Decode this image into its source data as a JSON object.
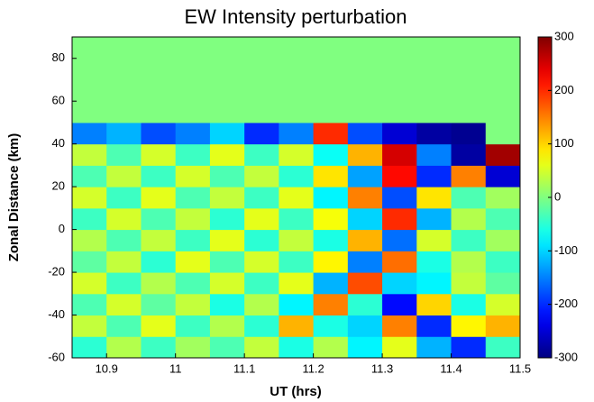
{
  "chart_data": {
    "type": "heatmap",
    "title": "EW Intensity perturbation",
    "x_label": "UT (hrs)",
    "y_label": "Zonal Distance (km)",
    "colormap": "jet",
    "x_edges": [
      10.85,
      10.9,
      10.95,
      11.0,
      11.05,
      11.1,
      11.15,
      11.2,
      11.25,
      11.3,
      11.35,
      11.4,
      11.45,
      11.5
    ],
    "y_edges": [
      -60,
      -50,
      -40,
      -30,
      -20,
      -10,
      0,
      10,
      20,
      30,
      40,
      50,
      60,
      70,
      80,
      90
    ],
    "z": [
      [
        -50,
        30,
        -40,
        20,
        -30,
        40,
        -60,
        30,
        -80,
        60,
        -120,
        -200,
        -40
      ],
      [
        40,
        -30,
        60,
        -40,
        30,
        -50,
        120,
        -60,
        -100,
        150,
        -200,
        80,
        120
      ],
      [
        -30,
        50,
        -20,
        40,
        -60,
        30,
        -80,
        150,
        -50,
        -220,
        100,
        -60,
        50
      ],
      [
        50,
        -40,
        30,
        -30,
        50,
        -40,
        60,
        -120,
        180,
        -100,
        -80,
        40,
        -20
      ],
      [
        -20,
        40,
        -50,
        60,
        -30,
        50,
        -40,
        80,
        -150,
        160,
        -60,
        30,
        -40
      ],
      [
        30,
        -30,
        40,
        -40,
        60,
        -50,
        40,
        -60,
        120,
        -160,
        50,
        -40,
        20
      ],
      [
        -40,
        50,
        -30,
        40,
        -50,
        60,
        -40,
        70,
        -100,
        200,
        -120,
        30,
        -30
      ],
      [
        50,
        -40,
        60,
        -30,
        40,
        -40,
        60,
        -80,
        150,
        -180,
        90,
        -30,
        20
      ],
      [
        -30,
        40,
        -40,
        50,
        -30,
        40,
        -50,
        90,
        -130,
        220,
        -200,
        150,
        -250
      ],
      [
        40,
        -30,
        50,
        -40,
        60,
        -40,
        50,
        -70,
        120,
        250,
        -150,
        -280,
        280
      ],
      [
        -150,
        -120,
        -180,
        -150,
        -100,
        -200,
        -150,
        200,
        -180,
        -250,
        -280,
        -290,
        0
      ],
      [
        0,
        0,
        0,
        0,
        0,
        0,
        0,
        0,
        0,
        0,
        0,
        0,
        0
      ],
      [
        0,
        0,
        0,
        0,
        0,
        0,
        0,
        0,
        0,
        0,
        0,
        0,
        0
      ],
      [
        0,
        0,
        0,
        0,
        0,
        0,
        0,
        0,
        0,
        0,
        0,
        0,
        0
      ],
      [
        0,
        0,
        0,
        0,
        0,
        0,
        0,
        0,
        0,
        0,
        0,
        0,
        0
      ]
    ],
    "xlim": [
      10.85,
      11.5
    ],
    "xticks": [
      10.9,
      11,
      11.1,
      11.2,
      11.3,
      11.4,
      11.5
    ],
    "ylim": [
      -60,
      90
    ],
    "yticks": [
      -60,
      -40,
      -20,
      0,
      20,
      40,
      60,
      80
    ],
    "zlim": [
      -300,
      300
    ],
    "zticks": [
      -300,
      -200,
      -100,
      0,
      100,
      200,
      300
    ]
  }
}
